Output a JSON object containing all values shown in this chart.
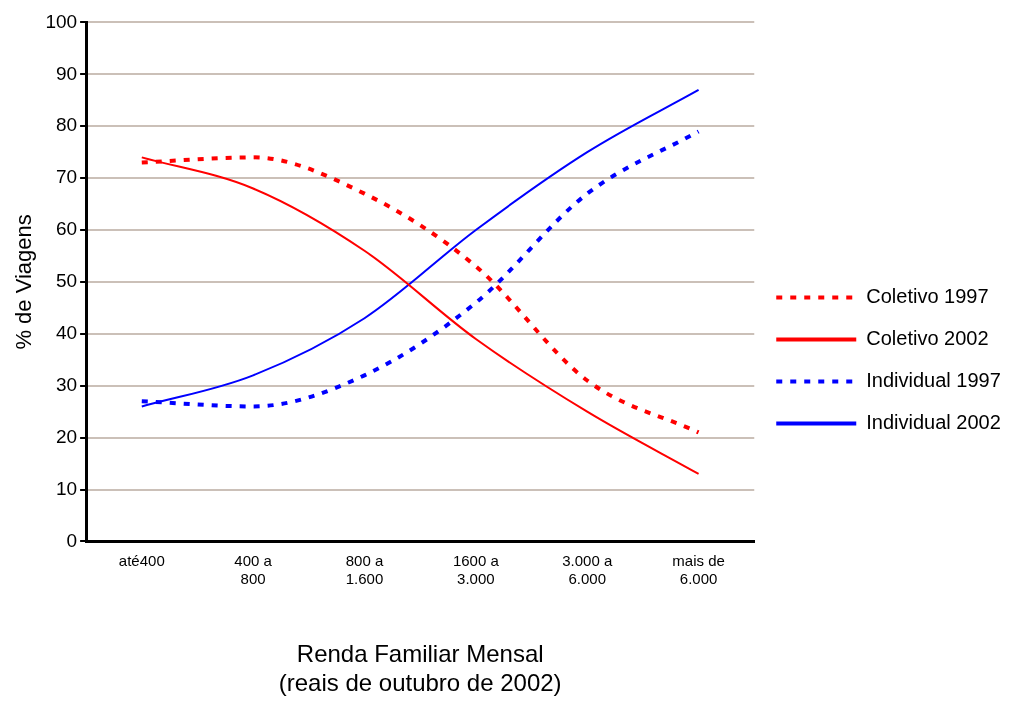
{
  "chart_data": {
    "type": "line",
    "xlabel": "Renda Familiar Mensal\n(reais de outubro de 2002)",
    "ylabel": "% de Viagens",
    "categories": [
      "até400",
      "400 a\n800",
      "800 a\n1.600",
      "1600 a\n3.000",
      "3.000 a\n6.000",
      "mais de\n6.000"
    ],
    "series": [
      {
        "name": "Coletivo 1997",
        "color": "#ff0000",
        "line_style": "dotted",
        "values": [
          73,
          74,
          67,
          53,
          31,
          21
        ]
      },
      {
        "name": "Coletivo 2002",
        "color": "#ff0000",
        "line_style": "solid",
        "values": [
          74,
          68,
          56,
          39,
          25,
          13
        ]
      },
      {
        "name": "Individual 1997",
        "color": "#0000ff",
        "line_style": "dotted",
        "values": [
          27,
          26,
          32,
          46,
          67,
          79
        ]
      },
      {
        "name": "Individual 2002",
        "color": "#0000ff",
        "line_style": "solid",
        "values": [
          26,
          32,
          43,
          60,
          75,
          87
        ]
      }
    ],
    "ylim": [
      0,
      100
    ],
    "yticks": [
      0,
      10,
      20,
      30,
      40,
      50,
      60,
      70,
      80,
      90,
      100
    ],
    "grid": "y",
    "legend": "right",
    "marker": "none"
  }
}
